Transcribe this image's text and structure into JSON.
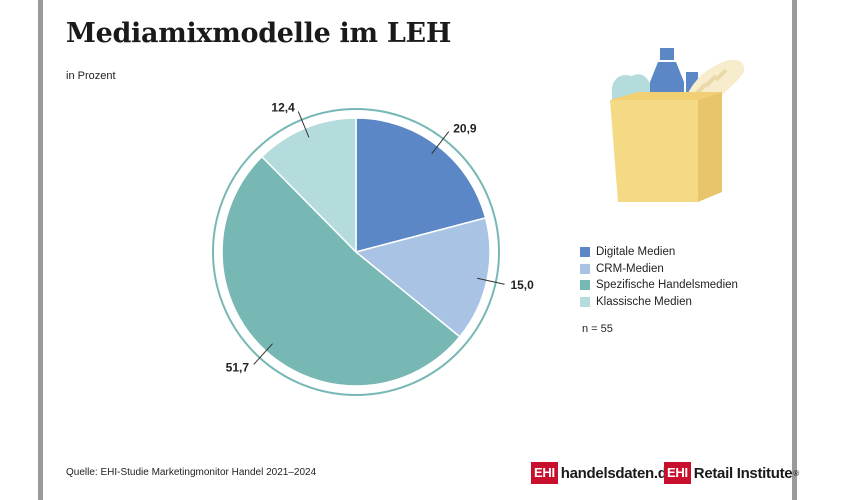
{
  "title": "Mediamixmodelle im LEH",
  "subtitle": "in Prozent",
  "chart_data": {
    "type": "pie",
    "categories": [
      "Digitale Medien",
      "CRM-Medien",
      "Spezifische Handelsmedien",
      "Klassische Medien"
    ],
    "values": [
      20.9,
      15.0,
      51.7,
      12.4
    ],
    "value_labels": [
      "20,9",
      "15,0",
      "51,7",
      "12,4"
    ],
    "colors": [
      "#5b87c6",
      "#a9c3e5",
      "#77b8b5",
      "#b5dcdc"
    ],
    "ring_color": "#77b8b5",
    "legend_placement": "right"
  },
  "note": "n = 55",
  "source": "Quelle: EHI-Studie Marketingmonitor Handel 2021–2024",
  "brands": {
    "logo1_box": "EHI",
    "logo1_text": "handelsdaten.de",
    "logo2_box": "EHI",
    "logo2_text": "Retail Institute",
    "logo2_mark": "®"
  },
  "illustration": "grocery-bag-icon"
}
